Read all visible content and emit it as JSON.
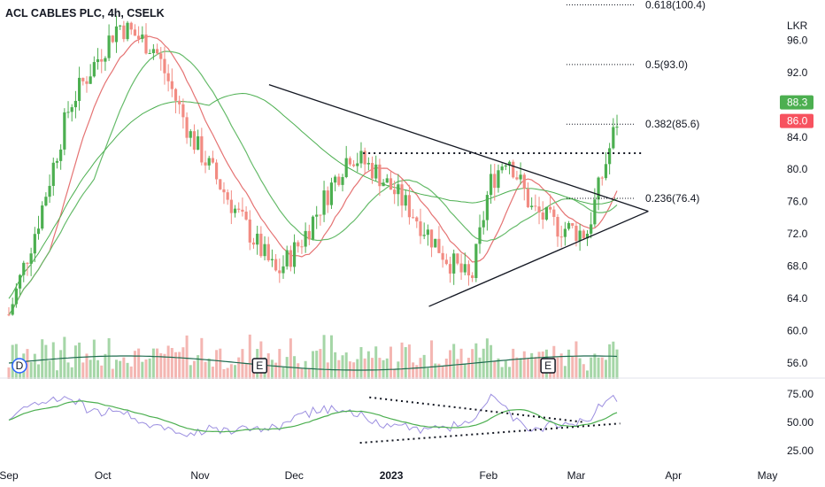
{
  "chart_data": {
    "type": "candlestick",
    "title": "ACL CABLES PLC, 4h, CSELK",
    "currency": "LKR",
    "y_ticks": [
      "96.0",
      "92.0",
      "88.0",
      "84.0",
      "80.0",
      "76.0",
      "72.0",
      "68.0",
      "64.0",
      "60.0",
      "56.0"
    ],
    "y_tick_values": [
      96,
      92,
      88,
      84,
      80,
      76,
      72,
      68,
      64,
      60,
      56
    ],
    "ylim": [
      54,
      101
    ],
    "rsi_ticks": [
      "75.00",
      "50.00",
      "25.00"
    ],
    "rsi_tick_values": [
      75,
      50,
      25
    ],
    "rsi_lim": [
      15,
      85
    ],
    "x_ticks": [
      {
        "label": "Sep",
        "date": "2022-09-01",
        "bold": false
      },
      {
        "label": "Oct",
        "date": "2022-10-01",
        "bold": false
      },
      {
        "label": "Nov",
        "date": "2022-11-01",
        "bold": false
      },
      {
        "label": "Dec",
        "date": "2022-12-01",
        "bold": false
      },
      {
        "label": "2023",
        "date": "2023-01-01",
        "bold": true
      },
      {
        "label": "Feb",
        "date": "2023-02-01",
        "bold": false
      },
      {
        "label": "Mar",
        "date": "2023-03-01",
        "bold": false
      },
      {
        "label": "Apr",
        "date": "2023-04-01",
        "bold": false
      },
      {
        "label": "May",
        "date": "2023-05-01",
        "bold": false
      }
    ],
    "fib_levels": [
      {
        "label": "0.618(100.4)",
        "price": 100.4
      },
      {
        "label": "0.5(93.0)",
        "price": 93.0
      },
      {
        "label": "0.382(85.6)",
        "price": 85.6
      },
      {
        "label": "0.236(76.4)",
        "price": 76.4
      }
    ],
    "price_badges": [
      {
        "label": "88.3",
        "price": 88.3,
        "color": "#4caf50"
      },
      {
        "label": "86.0",
        "price": 86.0,
        "color": "#f7525f"
      }
    ],
    "events": [
      {
        "label": "D",
        "date": "2022-09-01",
        "color": "#2962ff"
      },
      {
        "label": "E",
        "date": "2022-11-20",
        "color": "#131722"
      },
      {
        "label": "E",
        "date": "2023-02-20",
        "color": "#131722"
      }
    ],
    "ohlc_4h_approx": {
      "start": "2022-09-01",
      "end": "2023-03-14",
      "closes_path": [
        [
          0,
          62
        ],
        [
          0.05,
          74
        ],
        [
          0.1,
          88
        ],
        [
          0.18,
          98
        ],
        [
          0.24,
          95
        ],
        [
          0.3,
          84
        ],
        [
          0.38,
          74
        ],
        [
          0.44,
          67
        ],
        [
          0.48,
          71
        ],
        [
          0.56,
          82
        ],
        [
          0.6,
          80
        ],
        [
          0.66,
          75
        ],
        [
          0.72,
          69
        ],
        [
          0.76,
          66
        ],
        [
          0.79,
          78
        ],
        [
          0.82,
          82
        ],
        [
          0.86,
          75
        ],
        [
          0.9,
          73
        ],
        [
          0.95,
          72
        ],
        [
          1.0,
          86
        ]
      ]
    },
    "colors": {
      "up": "#26a69a",
      "down": "#ef5350",
      "up_body": "#4caf50",
      "down_body": "#f28b82",
      "ma_fast": "#e57373",
      "ma_mid": "#66bb6a",
      "ma_slow": "#4caf50",
      "rsi": "#9c8fe0",
      "rsi_ma": "#4caf50",
      "vol_ma": "#1e6b4f"
    }
  },
  "annotations": {
    "trendlines": [
      "triangle upper",
      "triangle lower"
    ],
    "resistance": 82.0
  }
}
